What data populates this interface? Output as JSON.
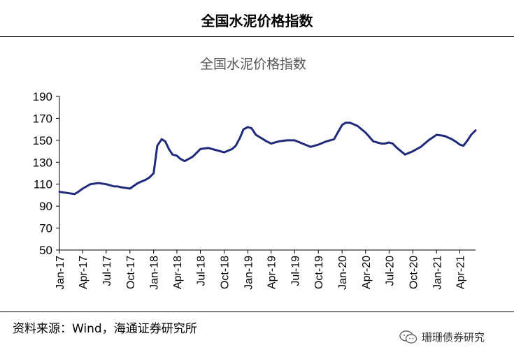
{
  "header": {
    "title": "全国水泥价格指数"
  },
  "footer": {
    "source": "资料来源：Wind，海通证券研究所",
    "watermark": "珊珊债券研究"
  },
  "chart_data": {
    "type": "line",
    "title": "全国水泥价格指数",
    "ylim": [
      50,
      190
    ],
    "yticks": [
      "50",
      "70",
      "90",
      "110",
      "130",
      "150",
      "170",
      "190"
    ],
    "xlim": [
      "2017-01",
      "2021-06"
    ],
    "xticks": [
      "Jan-17",
      "Apr-17",
      "Jul-17",
      "Oct-17",
      "Jan-18",
      "Apr-18",
      "Jul-18",
      "Oct-18",
      "Jan-19",
      "Apr-19",
      "Jul-19",
      "Oct-19",
      "Jan-20",
      "Apr-20",
      "Jul-20",
      "Oct-20",
      "Jan-21",
      "Apr-21"
    ],
    "grid": false,
    "color": "#1f2a7a",
    "series": [
      {
        "x": [
          "2017-01-01",
          "2017-02-01",
          "2017-03-01",
          "2017-03-15",
          "2017-04-01",
          "2017-05-01",
          "2017-06-01",
          "2017-07-01",
          "2017-08-01",
          "2017-08-15",
          "2017-09-01",
          "2017-10-01",
          "2017-11-01",
          "2017-12-01",
          "2017-12-15",
          "2018-01-01",
          "2018-01-15",
          "2018-02-01",
          "2018-02-15",
          "2018-03-01",
          "2018-03-15",
          "2018-04-01",
          "2018-04-15",
          "2018-05-01",
          "2018-06-01",
          "2018-07-01",
          "2018-08-01",
          "2018-09-01",
          "2018-10-01",
          "2018-11-01",
          "2018-11-15",
          "2018-12-01",
          "2018-12-15",
          "2019-01-01",
          "2019-01-15",
          "2019-02-01",
          "2019-03-01",
          "2019-03-15",
          "2019-04-01",
          "2019-05-01",
          "2019-06-01",
          "2019-07-01",
          "2019-08-01",
          "2019-09-01",
          "2019-10-01",
          "2019-11-01",
          "2019-12-01",
          "2019-12-15",
          "2020-01-01",
          "2020-01-15",
          "2020-02-01",
          "2020-03-01",
          "2020-04-01",
          "2020-05-01",
          "2020-06-01",
          "2020-06-15",
          "2020-07-01",
          "2020-07-15",
          "2020-08-01",
          "2020-09-01",
          "2020-10-01",
          "2020-11-01",
          "2020-12-01",
          "2021-01-01",
          "2021-02-01",
          "2021-03-01",
          "2021-03-15",
          "2021-04-01",
          "2021-04-15",
          "2021-05-01",
          "2021-05-15",
          "2021-06-01"
        ],
        "values": [
          103,
          102,
          101,
          103,
          106,
          110,
          111,
          110,
          108,
          108,
          107,
          106,
          111,
          114,
          116,
          120,
          145,
          151,
          149,
          142,
          137,
          136,
          133,
          131,
          135,
          142,
          143,
          141,
          139,
          142,
          145,
          152,
          160,
          162,
          161,
          155,
          151,
          149,
          147,
          149,
          150,
          150,
          147,
          144,
          146,
          149,
          151,
          157,
          164,
          166,
          166,
          163,
          157,
          149,
          147,
          147,
          148,
          147,
          143,
          137,
          140,
          144,
          150,
          155,
          154,
          151,
          149,
          146,
          145,
          150,
          155,
          159
        ]
      }
    ]
  }
}
